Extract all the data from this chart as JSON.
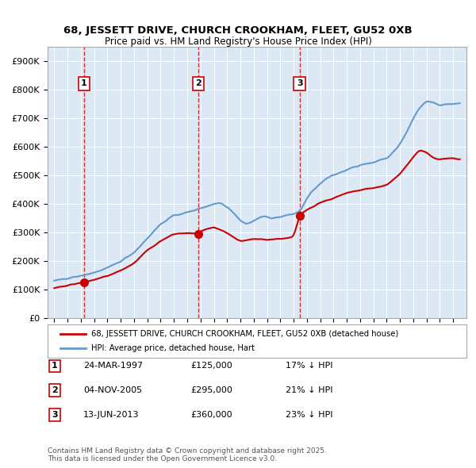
{
  "title": "68, JESSETT DRIVE, CHURCH CROOKHAM, FLEET, GU52 0XB",
  "subtitle": "Price paid vs. HM Land Registry's House Price Index (HPI)",
  "ylabel": "",
  "bg_color": "#dce9f5",
  "plot_bg": "#dce9f5",
  "red_line_color": "#cc0000",
  "blue_line_color": "#6699cc",
  "transactions": [
    {
      "num": 1,
      "date_x": 1997.23,
      "price": 125000,
      "label": "24-MAR-1997",
      "price_str": "£125,000",
      "pct": "17% ↓ HPI"
    },
    {
      "num": 2,
      "date_x": 2005.84,
      "price": 295000,
      "label": "04-NOV-2005",
      "price_str": "£295,000",
      "pct": "21% ↓ HPI"
    },
    {
      "num": 3,
      "date_x": 2013.45,
      "price": 360000,
      "label": "13-JUN-2013",
      "price_str": "£360,000",
      "pct": "23% ↓ HPI"
    }
  ],
  "legend_line1": "68, JESSETT DRIVE, CHURCH CROOKHAM, FLEET, GU52 0XB (detached house)",
  "legend_line2": "HPI: Average price, detached house, Hart",
  "footnote": "Contains HM Land Registry data © Crown copyright and database right 2025.\nThis data is licensed under the Open Government Licence v3.0.",
  "ylim": [
    0,
    950000
  ],
  "xlim": [
    1994.5,
    2026
  ]
}
